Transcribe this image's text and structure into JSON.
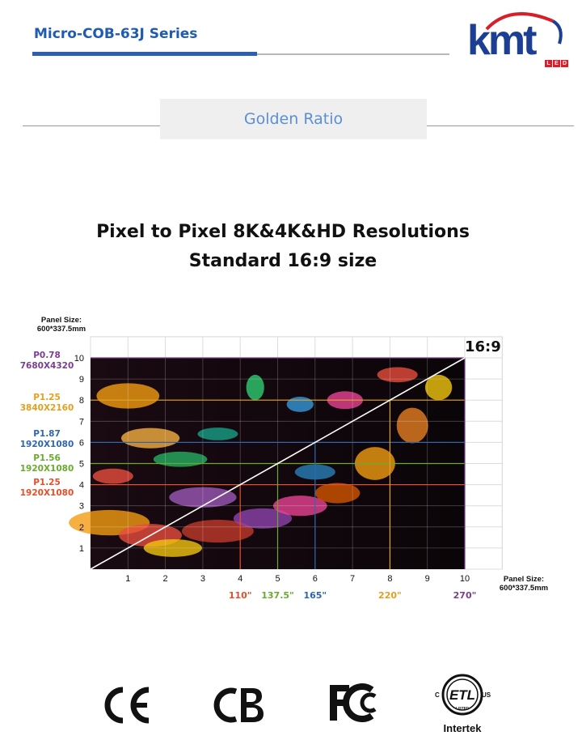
{
  "header": {
    "series_title": "Micro-COB-63J Series",
    "logo_text": "kmt",
    "logo_sub": [
      "L",
      "E",
      "D"
    ]
  },
  "section": {
    "title": "Golden Ratio"
  },
  "headline": {
    "line1": "Pixel to Pixel 8K&4K&HD Resolutions",
    "line2": "Standard 16:9 size"
  },
  "panel_size": {
    "top_line1": "Panel Size:",
    "top_line2": "600*337.5mm",
    "right_line1": "Panel Size:",
    "right_line2": "600*337.5mm"
  },
  "ratio_badge": "16:9",
  "chart_data": {
    "type": "diagram-grid",
    "x_ticks": [
      "1",
      "2",
      "3",
      "4",
      "5",
      "6",
      "7",
      "8",
      "9",
      "10"
    ],
    "y_ticks": [
      "1",
      "2",
      "3",
      "4",
      "5",
      "6",
      "7",
      "8",
      "9",
      "10"
    ],
    "xlim": [
      0,
      10
    ],
    "ylim": [
      0,
      10
    ],
    "resolutions": [
      {
        "pitch": "P0.78",
        "resolution": "7680X4320",
        "color": "#7a3f8f",
        "cols": 10,
        "rows": 10
      },
      {
        "pitch": "P1.25",
        "resolution": "3840X2160",
        "color": "#e0a020",
        "cols": 8,
        "rows": 8
      },
      {
        "pitch": "P1.87",
        "resolution": "1920X1080",
        "color": "#2f66ad",
        "cols": 4,
        "rows": 6
      },
      {
        "pitch": "P1.56",
        "resolution": "1920X1080",
        "color": "#6aaa2f",
        "cols": 4,
        "rows": 5
      },
      {
        "pitch": "P1.25",
        "resolution": "1920X1080",
        "color": "#e2502a",
        "cols": 4,
        "rows": 4
      }
    ],
    "diagonals": [
      {
        "label": "110\"",
        "x": 4,
        "color": "#e2502a"
      },
      {
        "label": "137.5\"",
        "x": 5,
        "color": "#6aaa2f"
      },
      {
        "label": "165\"",
        "x": 6,
        "color": "#2f66ad"
      },
      {
        "label": "220\"",
        "x": 8,
        "color": "#e0a020"
      },
      {
        "label": "270\"",
        "x": 10,
        "color": "#7a3f8f"
      }
    ]
  },
  "certifications": {
    "ce": "CE",
    "cb": "CB",
    "fcc": "FC",
    "etl": "ETL",
    "etl_c": "C",
    "etl_us": "US",
    "etl_listed": "LISTED",
    "intertek": "Intertek"
  }
}
